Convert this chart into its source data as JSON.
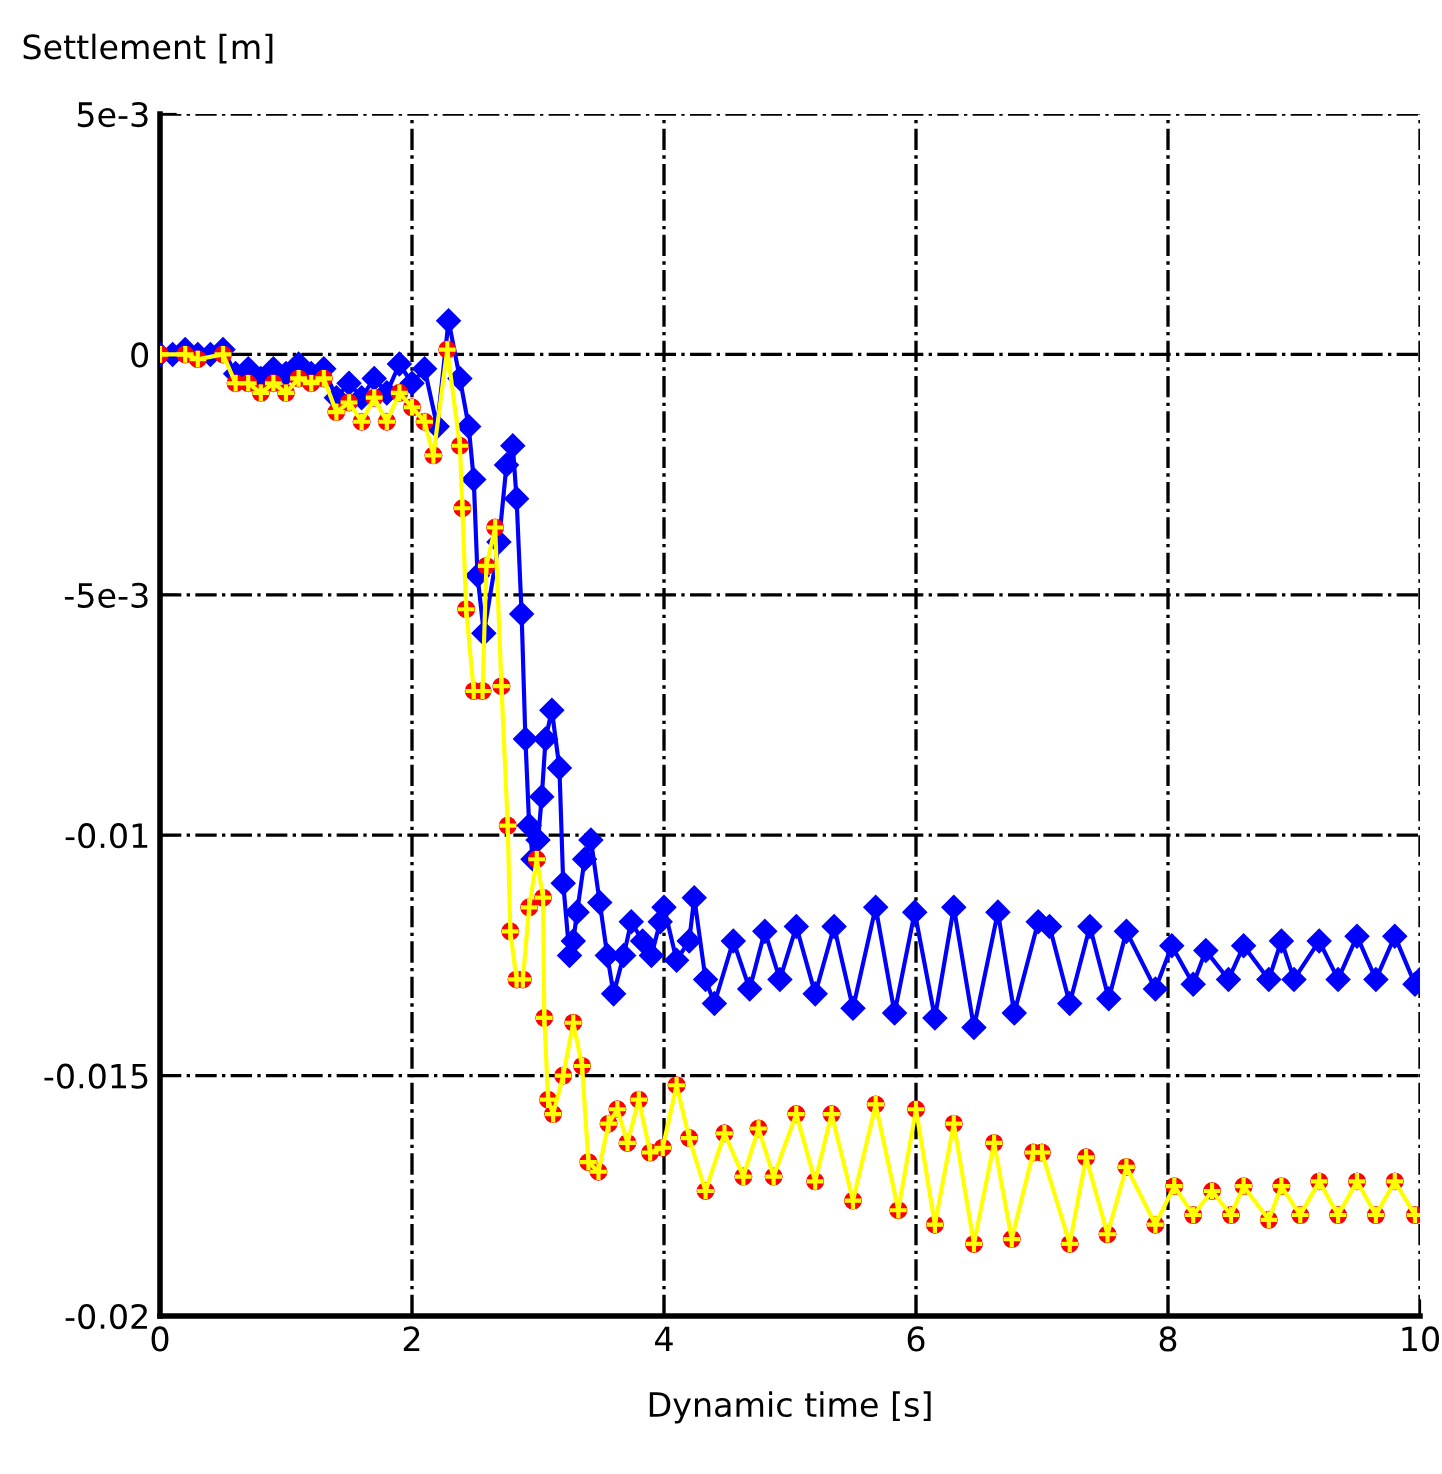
{
  "chart_data": {
    "type": "line",
    "xlabel": "Dynamic time [s]",
    "ylabel": "Settlement [m]",
    "xlim": [
      0,
      10
    ],
    "ylim": [
      -0.02,
      0.005
    ],
    "xticks": [
      0,
      2,
      4,
      6,
      8,
      10
    ],
    "yticks": [
      {
        "value": 0.005,
        "label": "5e-3"
      },
      {
        "value": 0,
        "label": "0"
      },
      {
        "value": -0.005,
        "label": "-5e-3"
      },
      {
        "value": -0.01,
        "label": "-0.01"
      },
      {
        "value": -0.015,
        "label": "-0.015"
      },
      {
        "value": -0.02,
        "label": "-0.02"
      }
    ],
    "grid": true,
    "legend": false,
    "line_style": "solid",
    "series": [
      {
        "marker": "diamond",
        "color": "#0000ff",
        "x": [
          0,
          0.1,
          0.2,
          0.3,
          0.4,
          0.5,
          0.6,
          0.7,
          0.8,
          0.9,
          1.0,
          1.1,
          1.2,
          1.3,
          1.4,
          1.5,
          1.6,
          1.7,
          1.8,
          1.9,
          2.0,
          2.1,
          2.2,
          2.29,
          2.38,
          2.45,
          2.49,
          2.52,
          2.57,
          2.69,
          2.75,
          2.8,
          2.83,
          2.87,
          2.9,
          2.93,
          2.96,
          3.0,
          3.03,
          3.06,
          3.11,
          3.17,
          3.2,
          3.25,
          3.28,
          3.31,
          3.37,
          3.42,
          3.49,
          3.55,
          3.6,
          3.68,
          3.74,
          3.83,
          3.9,
          3.97,
          4.0,
          4.1,
          4.2,
          4.24,
          4.33,
          4.4,
          4.55,
          4.68,
          4.8,
          4.92,
          5.05,
          5.2,
          5.35,
          5.5,
          5.68,
          5.83,
          5.99,
          6.15,
          6.3,
          6.46,
          6.65,
          6.78,
          6.97,
          7.06,
          7.22,
          7.38,
          7.53,
          7.67,
          7.9,
          8.03,
          8.2,
          8.3,
          8.48,
          8.6,
          8.8,
          8.9,
          9.0,
          9.2,
          9.35,
          9.5,
          9.65,
          9.8,
          9.96,
          10
        ],
        "values": [
          0,
          0,
          0.0001,
          0,
          0,
          0.0001,
          -0.0004,
          -0.0003,
          -0.0005,
          -0.0003,
          -0.0004,
          -0.0002,
          -0.0004,
          -0.0003,
          -0.0009,
          -0.0006,
          -0.0009,
          -0.0005,
          -0.0008,
          -0.0002,
          -0.0006,
          -0.0003,
          -0.0015,
          0.0007,
          -0.0005,
          -0.0015,
          -0.0026,
          -0.0046,
          -0.0058,
          -0.0039,
          -0.0023,
          -0.0019,
          -0.003,
          -0.0054,
          -0.008,
          -0.0098,
          -0.0105,
          -0.0101,
          -0.0092,
          -0.008,
          -0.0074,
          -0.0086,
          -0.011,
          -0.0125,
          -0.0122,
          -0.0116,
          -0.0105,
          -0.0101,
          -0.0114,
          -0.0125,
          -0.0133,
          -0.0125,
          -0.0118,
          -0.0122,
          -0.0125,
          -0.0118,
          -0.0115,
          -0.0126,
          -0.0122,
          -0.0113,
          -0.013,
          -0.0135,
          -0.0122,
          -0.0132,
          -0.012,
          -0.013,
          -0.0119,
          -0.0133,
          -0.0119,
          -0.0136,
          -0.0115,
          -0.0137,
          -0.0116,
          -0.0138,
          -0.0115,
          -0.014,
          -0.0116,
          -0.0137,
          -0.0118,
          -0.0119,
          -0.0135,
          -0.0119,
          -0.0134,
          -0.012,
          -0.0132,
          -0.0123,
          -0.0131,
          -0.0124,
          -0.013,
          -0.0123,
          -0.013,
          -0.0122,
          -0.013,
          -0.0122,
          -0.013,
          -0.0121,
          -0.013,
          -0.0121,
          -0.0131,
          -0.013
        ]
      },
      {
        "type": "scatter",
        "marker": "circle",
        "color": "#ff0000",
        "x": [
          0,
          0.2,
          0.3,
          0.5,
          0.6,
          0.7,
          0.8,
          0.9,
          1.0,
          1.1,
          1.2,
          1.3,
          1.4,
          1.5,
          1.6,
          1.7,
          1.8,
          1.9,
          2.0,
          2.1,
          2.17,
          2.28,
          2.38,
          2.4,
          2.43,
          2.49,
          2.56,
          2.59,
          2.66,
          2.71,
          2.76,
          2.78,
          2.83,
          2.88,
          2.93,
          2.99,
          3.04,
          3.05,
          3.08,
          3.12,
          3.2,
          3.28,
          3.35,
          3.4,
          3.48,
          3.56,
          3.63,
          3.71,
          3.8,
          3.89,
          3.99,
          4.1,
          4.2,
          4.33,
          4.48,
          4.63,
          4.75,
          4.87,
          5.05,
          5.2,
          5.33,
          5.5,
          5.68,
          5.86,
          6.0,
          6.15,
          6.3,
          6.46,
          6.62,
          6.76,
          6.93,
          7.0,
          7.22,
          7.35,
          7.52,
          7.67,
          7.9,
          8.05,
          8.2,
          8.35,
          8.5,
          8.6,
          8.8,
          8.9,
          9.05,
          9.2,
          9.35,
          9.5,
          9.65,
          9.8,
          9.96
        ],
        "values": [
          0,
          0,
          -0.0001,
          0,
          -0.0006,
          -0.0006,
          -0.0008,
          -0.0006,
          -0.0008,
          -0.0005,
          -0.0006,
          -0.0005,
          -0.0012,
          -0.001,
          -0.0014,
          -0.0009,
          -0.0014,
          -0.0008,
          -0.0011,
          -0.0014,
          -0.0021,
          0.0001,
          -0.0019,
          -0.0032,
          -0.0053,
          -0.007,
          -0.007,
          -0.0044,
          -0.0036,
          -0.0069,
          -0.0098,
          -0.012,
          -0.013,
          -0.013,
          -0.0115,
          -0.0105,
          -0.0113,
          -0.0138,
          -0.0155,
          -0.0158,
          -0.015,
          -0.0139,
          -0.0148,
          -0.0168,
          -0.017,
          -0.016,
          -0.0157,
          -0.0164,
          -0.0155,
          -0.0166,
          -0.0165,
          -0.0152,
          -0.0163,
          -0.0174,
          -0.0162,
          -0.0171,
          -0.0161,
          -0.0171,
          -0.0158,
          -0.0172,
          -0.0158,
          -0.0176,
          -0.0156,
          -0.0178,
          -0.0157,
          -0.0181,
          -0.016,
          -0.0185,
          -0.0164,
          -0.0184,
          -0.0166,
          -0.0166,
          -0.0185,
          -0.0167,
          -0.0183,
          -0.0169,
          -0.0181,
          -0.0173,
          -0.0179,
          -0.0174,
          -0.0179,
          -0.0173,
          -0.018,
          -0.0173,
          -0.0179,
          -0.0172,
          -0.0179,
          -0.0172,
          -0.0179,
          -0.0172,
          -0.0179
        ]
      },
      {
        "marker": "cross",
        "color": "#ffff00",
        "x": [
          0,
          0.2,
          0.3,
          0.5,
          0.6,
          0.7,
          0.8,
          0.9,
          1.0,
          1.1,
          1.2,
          1.3,
          1.4,
          1.5,
          1.6,
          1.7,
          1.8,
          1.9,
          2.0,
          2.1,
          2.17,
          2.28,
          2.38,
          2.4,
          2.43,
          2.49,
          2.56,
          2.59,
          2.66,
          2.71,
          2.76,
          2.78,
          2.83,
          2.88,
          2.93,
          2.99,
          3.04,
          3.05,
          3.08,
          3.12,
          3.2,
          3.28,
          3.35,
          3.4,
          3.48,
          3.56,
          3.63,
          3.71,
          3.8,
          3.89,
          3.99,
          4.1,
          4.2,
          4.33,
          4.48,
          4.63,
          4.75,
          4.87,
          5.05,
          5.2,
          5.33,
          5.5,
          5.68,
          5.86,
          6.0,
          6.15,
          6.3,
          6.46,
          6.62,
          6.76,
          6.93,
          7.0,
          7.22,
          7.35,
          7.52,
          7.67,
          7.9,
          8.05,
          8.2,
          8.35,
          8.5,
          8.6,
          8.8,
          8.9,
          9.05,
          9.2,
          9.35,
          9.5,
          9.65,
          9.8,
          9.96
        ],
        "values": [
          0,
          0,
          -0.0001,
          0,
          -0.0006,
          -0.0006,
          -0.0008,
          -0.0006,
          -0.0008,
          -0.0005,
          -0.0006,
          -0.0005,
          -0.0012,
          -0.001,
          -0.0014,
          -0.0009,
          -0.0014,
          -0.0008,
          -0.0011,
          -0.0014,
          -0.0021,
          0.0001,
          -0.0019,
          -0.0032,
          -0.0053,
          -0.007,
          -0.007,
          -0.0044,
          -0.0036,
          -0.0069,
          -0.0098,
          -0.012,
          -0.013,
          -0.013,
          -0.0115,
          -0.0105,
          -0.0113,
          -0.0138,
          -0.0155,
          -0.0158,
          -0.015,
          -0.0139,
          -0.0148,
          -0.0168,
          -0.017,
          -0.016,
          -0.0157,
          -0.0164,
          -0.0155,
          -0.0166,
          -0.0165,
          -0.0152,
          -0.0163,
          -0.0174,
          -0.0162,
          -0.0171,
          -0.0161,
          -0.0171,
          -0.0158,
          -0.0172,
          -0.0158,
          -0.0176,
          -0.0156,
          -0.0178,
          -0.0157,
          -0.0181,
          -0.016,
          -0.0185,
          -0.0164,
          -0.0184,
          -0.0166,
          -0.0166,
          -0.0185,
          -0.0167,
          -0.0183,
          -0.0169,
          -0.0181,
          -0.0173,
          -0.0179,
          -0.0174,
          -0.0179,
          -0.0173,
          -0.018,
          -0.0173,
          -0.0179,
          -0.0172,
          -0.0179,
          -0.0172,
          -0.0179,
          -0.0172,
          -0.0179
        ]
      }
    ]
  }
}
